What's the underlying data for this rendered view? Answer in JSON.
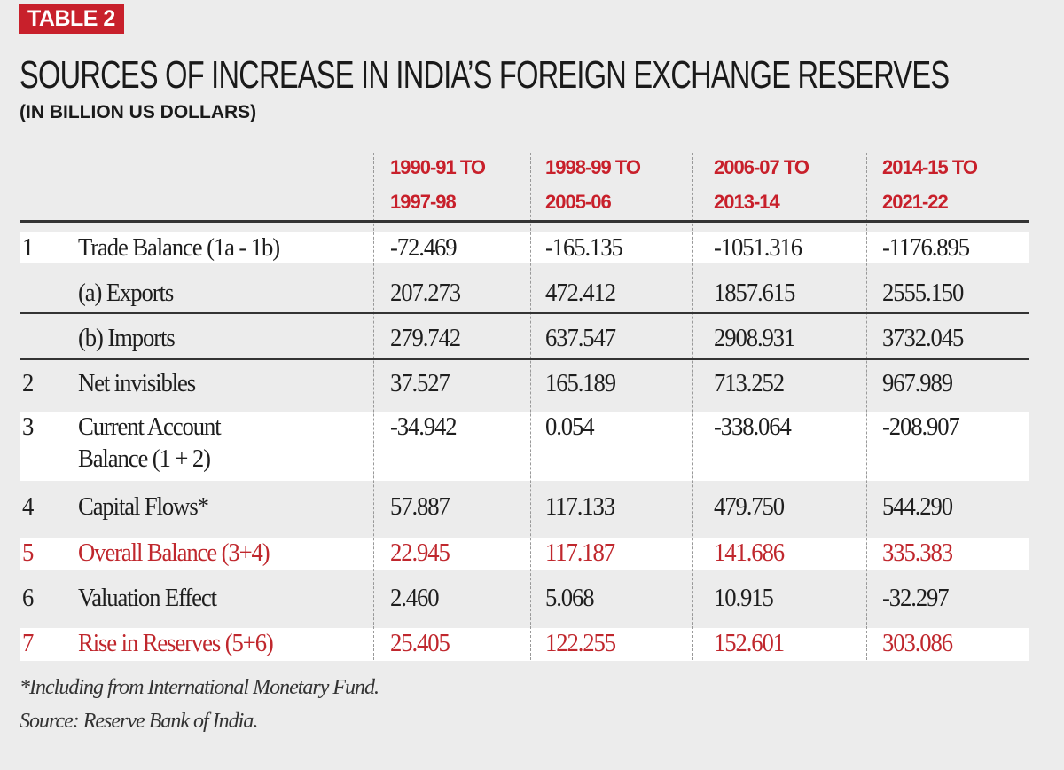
{
  "badge": "TABLE 2",
  "title": "SOURCES OF INCREASE IN INDIA’S FOREIGN EXCHANGE RESERVES",
  "subtitle": "(IN BILLION US DOLLARS)",
  "accent_color": "#c8202b",
  "chart_data": {
    "type": "table",
    "title": "SOURCES OF INCREASE IN INDIA’S FOREIGN EXCHANGE RESERVES",
    "subtitle": "(IN BILLION US DOLLARS)",
    "columns": [
      {
        "line1": "1990-91 TO",
        "line2": "1997-98"
      },
      {
        "line1": "1998-99 TO",
        "line2": "2005-06"
      },
      {
        "line1": "2006-07 TO",
        "line2": "2013-14"
      },
      {
        "line1": "2014-15 TO",
        "line2": "2021-22"
      }
    ],
    "rows": [
      {
        "num": "1",
        "label": "Trade Balance (1a - 1b)",
        "values": [
          "-72.469",
          "-165.135",
          "-1051.316",
          "-1176.895"
        ],
        "highlight": false
      },
      {
        "num": "",
        "label": "(a) Exports",
        "values": [
          "207.273",
          "472.412",
          "1857.615",
          "2555.150"
        ],
        "highlight": false
      },
      {
        "num": "",
        "label": "(b) Imports",
        "values": [
          "279.742",
          "637.547",
          "2908.931",
          "3732.045"
        ],
        "highlight": false
      },
      {
        "num": "2",
        "label": "Net invisibles",
        "values": [
          "37.527",
          "165.189",
          "713.252",
          "967.989"
        ],
        "highlight": false
      },
      {
        "num": "3",
        "label": "Current Account",
        "label2": "Balance (1 + 2)",
        "values": [
          "-34.942",
          "0.054",
          "-338.064",
          "-208.907"
        ],
        "highlight": false
      },
      {
        "num": "4",
        "label": "Capital Flows*",
        "values": [
          "57.887",
          "117.133",
          "479.750",
          "544.290"
        ],
        "highlight": false
      },
      {
        "num": "5",
        "label": "Overall Balance (3+4)",
        "values": [
          "22.945",
          "117.187",
          "141.686",
          "335.383"
        ],
        "highlight": true
      },
      {
        "num": "6",
        "label": "Valuation Effect",
        "values": [
          "2.460",
          "5.068",
          "10.915",
          "-32.297"
        ],
        "highlight": false
      },
      {
        "num": "7",
        "label": "Rise in Reserves (5+6)",
        "values": [
          "25.405",
          "122.255",
          "152.601",
          "303.086"
        ],
        "highlight": true
      }
    ]
  },
  "footnotes": {
    "note": "*Including from International Monetary Fund.",
    "source": "Source: Reserve Bank of India."
  }
}
